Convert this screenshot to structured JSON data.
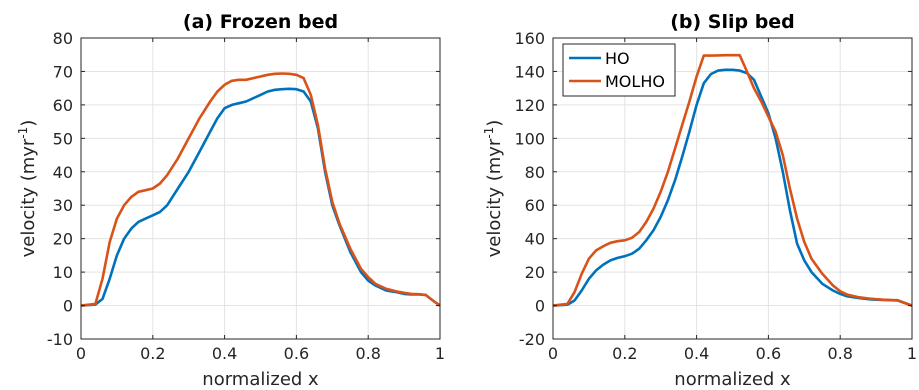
{
  "chart_data": [
    {
      "type": "line",
      "title": "(a) Frozen bed",
      "xlabel": "normalized x",
      "ylabel_main": "velocity (myr",
      "ylabel_sup": "-1",
      "ylabel_end": ")",
      "xlim": [
        0,
        1
      ],
      "ylim": [
        -10,
        80
      ],
      "xticks": [
        0,
        0.2,
        0.4,
        0.6,
        0.8,
        1
      ],
      "xtick_labels": [
        "0",
        "0.2",
        "0.4",
        "0.6",
        "0.8",
        "1"
      ],
      "yticks": [
        -10,
        0,
        10,
        20,
        30,
        40,
        50,
        60,
        70,
        80
      ],
      "ytick_labels": [
        "-10",
        "0",
        "10",
        "20",
        "30",
        "40",
        "50",
        "60",
        "70",
        "80"
      ],
      "grid": true,
      "legend": false,
      "series": [
        {
          "name": "HO",
          "color": "#0072BD",
          "x": [
            0,
            0.04,
            0.06,
            0.08,
            0.1,
            0.12,
            0.14,
            0.16,
            0.18,
            0.2,
            0.22,
            0.24,
            0.27,
            0.3,
            0.33,
            0.36,
            0.38,
            0.4,
            0.42,
            0.44,
            0.46,
            0.48,
            0.5,
            0.52,
            0.54,
            0.56,
            0.58,
            0.6,
            0.62,
            0.64,
            0.66,
            0.68,
            0.7,
            0.72,
            0.75,
            0.78,
            0.8,
            0.82,
            0.85,
            0.88,
            0.9,
            0.92,
            0.94,
            0.96,
            0.98,
            1.0
          ],
          "y": [
            0,
            0.3,
            2,
            8,
            15,
            20,
            23,
            25,
            26,
            27,
            28,
            30,
            35,
            40,
            46,
            52,
            56,
            59,
            60,
            60.5,
            61,
            62,
            63,
            64,
            64.5,
            64.7,
            64.8,
            64.7,
            64,
            61,
            53,
            40,
            30,
            24,
            16,
            10,
            7.5,
            6,
            4.5,
            4,
            3.5,
            3.3,
            3.3,
            3.2,
            1.5,
            0
          ]
        },
        {
          "name": "MOLHO",
          "color": "#D95319",
          "x": [
            0,
            0.04,
            0.06,
            0.08,
            0.1,
            0.12,
            0.14,
            0.16,
            0.18,
            0.2,
            0.22,
            0.24,
            0.27,
            0.3,
            0.33,
            0.36,
            0.38,
            0.4,
            0.42,
            0.44,
            0.46,
            0.48,
            0.5,
            0.52,
            0.54,
            0.56,
            0.58,
            0.6,
            0.62,
            0.64,
            0.66,
            0.68,
            0.7,
            0.72,
            0.75,
            0.78,
            0.8,
            0.82,
            0.85,
            0.88,
            0.9,
            0.92,
            0.94,
            0.96,
            0.98,
            1.0
          ],
          "y": [
            0,
            0.5,
            8,
            19,
            26,
            30,
            32.5,
            34,
            34.5,
            35,
            36.5,
            39,
            44,
            50,
            56,
            61,
            64,
            66,
            67.2,
            67.5,
            67.5,
            68,
            68.5,
            69,
            69.3,
            69.4,
            69.3,
            69,
            68,
            63,
            54,
            41,
            31,
            24.5,
            17,
            11,
            8.5,
            6.5,
            5,
            4.2,
            3.8,
            3.5,
            3.4,
            3.2,
            1.5,
            0
          ]
        }
      ]
    },
    {
      "type": "line",
      "title": "(b) Slip bed",
      "xlabel": "normalized x",
      "ylabel_main": "velocity (myr",
      "ylabel_sup": "-1",
      "ylabel_end": ")",
      "xlim": [
        0,
        1
      ],
      "ylim": [
        -20,
        160
      ],
      "xticks": [
        0,
        0.2,
        0.4,
        0.6,
        0.8,
        1
      ],
      "xtick_labels": [
        "0",
        "0.2",
        "0.4",
        "0.6",
        "0.8",
        "1"
      ],
      "yticks": [
        -20,
        0,
        20,
        40,
        60,
        80,
        100,
        120,
        140,
        160
      ],
      "ytick_labels": [
        "-20",
        "0",
        "20",
        "40",
        "60",
        "80",
        "100",
        "120",
        "140",
        "160"
      ],
      "grid": true,
      "legend": true,
      "legend_location": "top-left",
      "series": [
        {
          "name": "HO",
          "color": "#0072BD",
          "x": [
            0,
            0.04,
            0.06,
            0.08,
            0.1,
            0.12,
            0.14,
            0.16,
            0.18,
            0.2,
            0.22,
            0.24,
            0.26,
            0.28,
            0.3,
            0.32,
            0.34,
            0.36,
            0.38,
            0.4,
            0.42,
            0.44,
            0.46,
            0.48,
            0.5,
            0.52,
            0.54,
            0.56,
            0.58,
            0.6,
            0.62,
            0.64,
            0.66,
            0.68,
            0.7,
            0.72,
            0.75,
            0.78,
            0.8,
            0.82,
            0.85,
            0.88,
            0.9,
            0.92,
            0.94,
            0.96,
            0.98,
            1.0
          ],
          "y": [
            0,
            0.5,
            3,
            9,
            16,
            21,
            24.5,
            27,
            28.5,
            29.5,
            31,
            34,
            39,
            45,
            53,
            63,
            75,
            89,
            104,
            120,
            133,
            138.5,
            140.5,
            141,
            141,
            140.5,
            139,
            135,
            125,
            115,
            100,
            80,
            57,
            37,
            27,
            20,
            13,
            9,
            7,
            5.5,
            4.5,
            3.8,
            3.5,
            3.3,
            3.2,
            3,
            1.5,
            0
          ]
        },
        {
          "name": "MOLHO",
          "color": "#D95319",
          "x": [
            0,
            0.04,
            0.06,
            0.08,
            0.1,
            0.12,
            0.14,
            0.16,
            0.18,
            0.2,
            0.22,
            0.24,
            0.26,
            0.28,
            0.3,
            0.32,
            0.34,
            0.36,
            0.38,
            0.4,
            0.42,
            0.44,
            0.46,
            0.48,
            0.5,
            0.52,
            0.54,
            0.56,
            0.58,
            0.6,
            0.62,
            0.64,
            0.66,
            0.68,
            0.7,
            0.72,
            0.75,
            0.78,
            0.8,
            0.82,
            0.85,
            0.88,
            0.9,
            0.92,
            0.94,
            0.96,
            0.98,
            1.0
          ],
          "y": [
            0,
            1,
            8,
            19,
            28,
            33,
            35.5,
            37.5,
            38.5,
            39,
            40.5,
            44,
            50,
            58,
            68,
            80,
            94,
            108,
            122,
            137,
            149.5,
            149.5,
            149.6,
            149.7,
            149.7,
            149.7,
            140,
            130,
            122,
            113,
            104,
            90,
            70,
            52,
            38,
            28,
            19,
            12,
            8.5,
            6.5,
            5,
            4.2,
            3.8,
            3.5,
            3.3,
            3.2,
            1.5,
            0
          ]
        }
      ]
    }
  ]
}
